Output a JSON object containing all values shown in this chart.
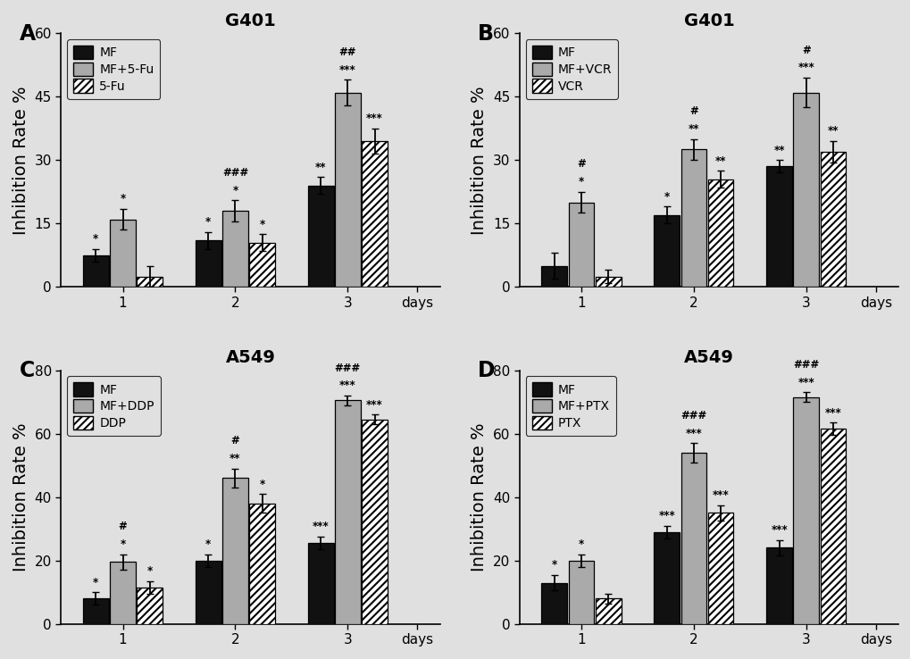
{
  "panels": [
    {
      "label": "A",
      "title": "G401",
      "ylabel": "Inhibition Rate %",
      "ylim": [
        0,
        60
      ],
      "yticks": [
        0,
        15,
        30,
        45,
        60
      ],
      "legend_labels": [
        "MF",
        "MF+5-Fu",
        "5-Fu"
      ],
      "data_MF": {
        "means": [
          7.5,
          11.0,
          24.0
        ],
        "sds": [
          1.5,
          2.0,
          2.0
        ]
      },
      "data_combo": {
        "means": [
          16.0,
          18.0,
          46.0
        ],
        "sds": [
          2.5,
          2.5,
          3.0
        ]
      },
      "data_drug": {
        "means": [
          2.5,
          10.5,
          34.5
        ],
        "sds": [
          2.5,
          2.0,
          3.0
        ]
      },
      "star_MF": [
        "*",
        "*",
        "**"
      ],
      "star_combo": [
        "*",
        "*",
        "***"
      ],
      "star_drug": [
        "",
        "*",
        "***"
      ],
      "hash_combo": [
        "",
        "###",
        "##"
      ]
    },
    {
      "label": "B",
      "title": "G401",
      "ylabel": "Inhibition Rate %",
      "ylim": [
        0,
        60
      ],
      "yticks": [
        0,
        15,
        30,
        45,
        60
      ],
      "legend_labels": [
        "MF",
        "MF+VCR",
        "VCR"
      ],
      "data_MF": {
        "means": [
          5.0,
          17.0,
          28.5
        ],
        "sds": [
          3.0,
          2.0,
          1.5
        ]
      },
      "data_combo": {
        "means": [
          20.0,
          32.5,
          46.0
        ],
        "sds": [
          2.5,
          2.5,
          3.5
        ]
      },
      "data_drug": {
        "means": [
          2.5,
          25.5,
          32.0
        ],
        "sds": [
          1.5,
          2.0,
          2.5
        ]
      },
      "star_MF": [
        "",
        "*",
        "**"
      ],
      "star_combo": [
        "*",
        "**",
        "***"
      ],
      "star_drug": [
        "",
        "**",
        "**"
      ],
      "hash_combo": [
        "#",
        "#",
        "#"
      ]
    },
    {
      "label": "C",
      "title": "A549",
      "ylabel": "Inhibition Rate %",
      "ylim": [
        0,
        80
      ],
      "yticks": [
        0,
        20,
        40,
        60,
        80
      ],
      "legend_labels": [
        "MF",
        "MF+DDP",
        "DDP"
      ],
      "data_MF": {
        "means": [
          8.0,
          20.0,
          25.5
        ],
        "sds": [
          2.0,
          2.0,
          2.0
        ]
      },
      "data_combo": {
        "means": [
          19.5,
          46.0,
          70.5
        ],
        "sds": [
          2.5,
          3.0,
          1.5
        ]
      },
      "data_drug": {
        "means": [
          11.5,
          38.0,
          64.5
        ],
        "sds": [
          2.0,
          3.0,
          1.5
        ]
      },
      "star_MF": [
        "*",
        "*",
        "***"
      ],
      "star_combo": [
        "*",
        "**",
        "***"
      ],
      "star_drug": [
        "*",
        "*",
        "***"
      ],
      "hash_combo": [
        "#",
        "#",
        "###"
      ]
    },
    {
      "label": "D",
      "title": "A549",
      "ylabel": "Inhibition Rate %",
      "ylim": [
        0,
        80
      ],
      "yticks": [
        0,
        20,
        40,
        60,
        80
      ],
      "legend_labels": [
        "MF",
        "MF+PTX",
        "PTX"
      ],
      "data_MF": {
        "means": [
          13.0,
          29.0,
          24.0
        ],
        "sds": [
          2.5,
          2.0,
          2.5
        ]
      },
      "data_combo": {
        "means": [
          20.0,
          54.0,
          71.5
        ],
        "sds": [
          2.0,
          3.0,
          1.5
        ]
      },
      "data_drug": {
        "means": [
          8.0,
          35.0,
          61.5
        ],
        "sds": [
          1.5,
          2.5,
          2.0
        ]
      },
      "star_MF": [
        "*",
        "***",
        "***"
      ],
      "star_combo": [
        "*",
        "***",
        "***"
      ],
      "star_drug": [
        "",
        "***",
        "***"
      ],
      "hash_combo": [
        "",
        "###",
        "###"
      ]
    }
  ],
  "figure_bg": "#e0e0e0",
  "axes_bg": "#e0e0e0",
  "bar_black": "#111111",
  "bar_gray": "#aaaaaa",
  "bar_width": 0.24,
  "hatch_pattern": "////",
  "annotation_fontsize": 8.5,
  "label_fontsize": 14,
  "title_fontsize": 14,
  "tick_fontsize": 11,
  "legend_fontsize": 10,
  "axis_lw": 1.2,
  "capsize": 3,
  "errorbar_lw": 1.3
}
